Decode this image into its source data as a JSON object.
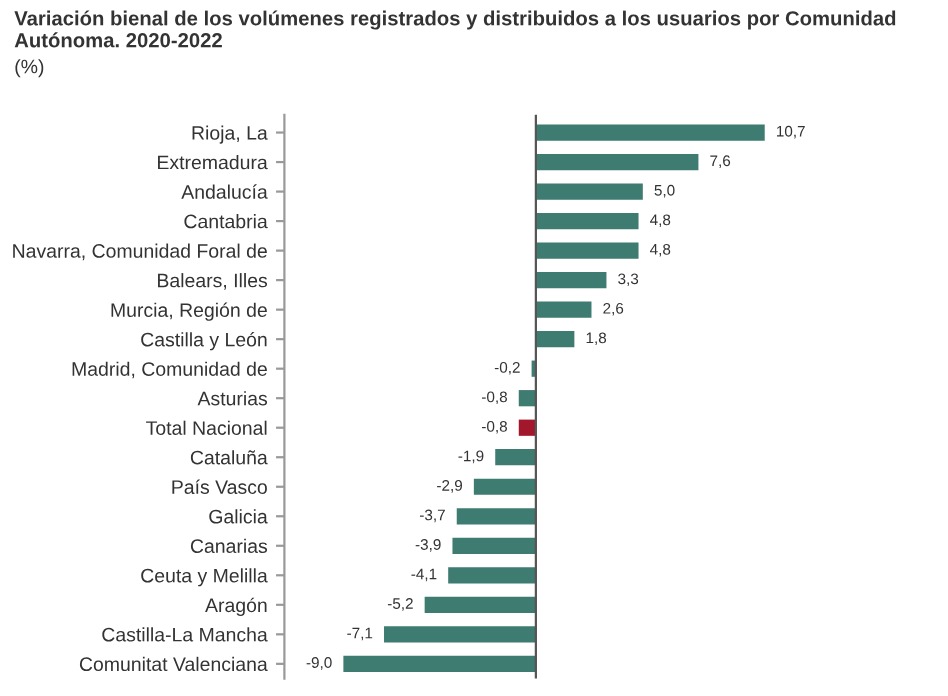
{
  "chart_data": {
    "type": "bar",
    "orientation": "horizontal",
    "title": "Variación bienal de los volúmenes registrados y distribuidos a los usuarios por Comunidad Autónoma. 2020-2022",
    "subtitle": "(%)",
    "categories": [
      "Rioja, La",
      "Extremadura",
      "Andalucía",
      "Cantabria",
      "Navarra, Comunidad Foral de",
      "Balears, Illes",
      "Murcia, Región de",
      "Castilla y León",
      "Madrid, Comunidad de",
      "Asturias",
      "Total Nacional",
      "Cataluña",
      "País Vasco",
      "Galicia",
      "Canarias",
      "Ceuta y Melilla",
      "Aragón",
      "Castilla-La Mancha",
      "Comunitat Valenciana"
    ],
    "values": [
      10.7,
      7.6,
      5.0,
      4.8,
      4.8,
      3.3,
      2.6,
      1.8,
      -0.2,
      -0.8,
      -0.8,
      -1.9,
      -2.9,
      -3.7,
      -3.9,
      -4.1,
      -5.2,
      -7.1,
      -9.0
    ],
    "colors": [
      "#3e7b70",
      "#3e7b70",
      "#3e7b70",
      "#3e7b70",
      "#3e7b70",
      "#3e7b70",
      "#3e7b70",
      "#3e7b70",
      "#3e7b70",
      "#3e7b70",
      "#a3172c",
      "#3e7b70",
      "#3e7b70",
      "#3e7b70",
      "#3e7b70",
      "#3e7b70",
      "#3e7b70",
      "#3e7b70",
      "#3e7b70"
    ],
    "value_labels": [
      "10,7",
      "7,6",
      "5,0",
      "4,8",
      "4,8",
      "3,3",
      "2,6",
      "1,8",
      "-0,2",
      "-0,8",
      "-0,8",
      "-1,9",
      "-2,9",
      "-3,7",
      "-3,9",
      "-4,1",
      "-5,2",
      "-7,1",
      "-9,0"
    ],
    "grid": false,
    "legend": false
  }
}
